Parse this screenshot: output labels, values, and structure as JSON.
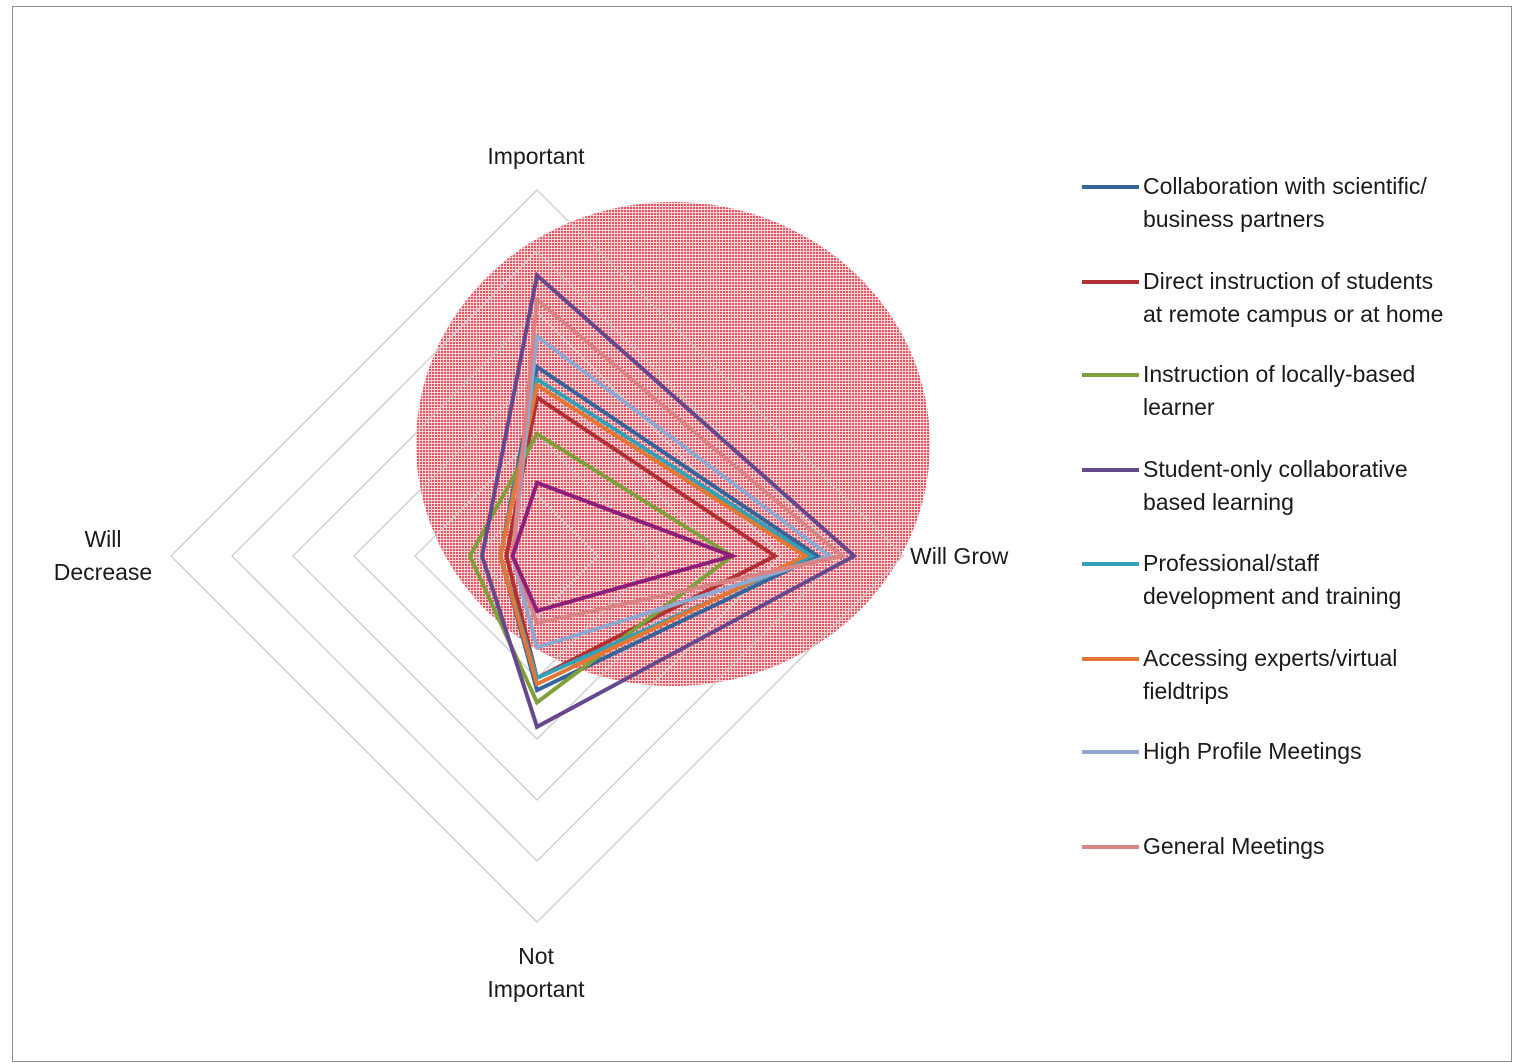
{
  "chart_data": {
    "type": "radar",
    "axes": [
      "Important",
      "Will Grow",
      "Not Important",
      "Will Decrease"
    ],
    "axis_label_lines": {
      "important": [
        "Important"
      ],
      "will_grow": [
        "Will Grow"
      ],
      "not_important": [
        "Not",
        "Important"
      ],
      "will_decrease": [
        "Will",
        "Decrease"
      ]
    },
    "scale": {
      "min": 0,
      "max": 6,
      "rings": 6
    },
    "gridlines": true,
    "highlight": {
      "shape": "circle",
      "color": "#e8414e",
      "pattern": "dotted"
    },
    "legend_position": "right",
    "series": [
      {
        "name": "Collaboration with scientific/ business partners",
        "name_lines": [
          "Collaboration with scientific/",
          "business partners"
        ],
        "color": "#35659b",
        "values": [
          3.1,
          4.6,
          2.2,
          0.6
        ]
      },
      {
        "name": "Direct instruction of students at remote campus or at home",
        "name_lines": [
          "Direct instruction of students",
          "at remote campus or at home"
        ],
        "color": "#b03034",
        "values": [
          2.6,
          3.9,
          2.0,
          0.5
        ]
      },
      {
        "name": "Instruction of locally-based learner",
        "name_lines": [
          "Instruction of locally-based",
          "learner"
        ],
        "color": "#7f9f3c",
        "values": [
          2.0,
          3.2,
          2.4,
          1.1
        ]
      },
      {
        "name": "Student-only collaborative based learning",
        "name_lines": [
          "Student-only collaborative",
          "based learning"
        ],
        "color": "#66498c",
        "values": [
          4.6,
          5.2,
          2.8,
          0.9
        ]
      },
      {
        "name": "Professional/staff development and training",
        "name_lines": [
          "Professional/staff",
          "development and training"
        ],
        "color": "#32a0b6",
        "values": [
          2.9,
          4.5,
          2.0,
          0.6
        ]
      },
      {
        "name": "Accessing experts/virtual fieldtrips",
        "name_lines": [
          "Accessing experts/virtual",
          "fieldtrips"
        ],
        "color": "#e27834",
        "values": [
          2.8,
          4.4,
          2.1,
          0.6
        ]
      },
      {
        "name": "High Profile Meetings",
        "name_lines": [
          "High Profile Meetings"
        ],
        "color": "#8fa8d2",
        "values": [
          3.6,
          4.8,
          1.5,
          0.4
        ]
      },
      {
        "name": "General Meetings",
        "name_lines": [
          "General Meetings"
        ],
        "color": "#d88484",
        "values": [
          4.2,
          5.0,
          1.1,
          0.4
        ]
      },
      {
        "name": "",
        "name_lines": [],
        "color": "#8b1f7a",
        "values": [
          1.2,
          3.2,
          0.9,
          0.4
        ]
      }
    ]
  }
}
